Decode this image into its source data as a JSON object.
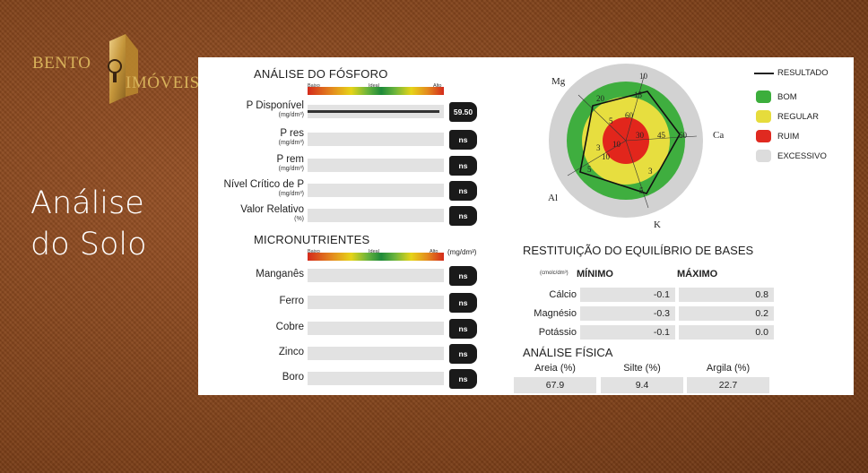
{
  "logo": {
    "line1": "BENTO",
    "line2": "IMÓVEIS"
  },
  "slide_title": {
    "line1": "Análise",
    "line2": "do Solo"
  },
  "scale": {
    "low": "Baixo",
    "ideal": "Ideal",
    "high": "Alto",
    "unit": "(mg/dm³)"
  },
  "phosphorus": {
    "title": "ANÁLISE DO FÓSFORO",
    "rows": [
      {
        "label": "P Disponível",
        "sub": "(mg/dm³)",
        "value": "59.50",
        "fill": 0.97
      },
      {
        "label": "P res",
        "sub": "(mg/dm³)",
        "value": "ns",
        "fill": 0
      },
      {
        "label": "P rem",
        "sub": "(mg/dm³)",
        "value": "ns",
        "fill": 0
      },
      {
        "label": "Nível Crítico de P",
        "sub": "(mg/dm³)",
        "value": "ns",
        "fill": 0
      },
      {
        "label": "Valor Relativo",
        "sub": "(%)",
        "value": "ns",
        "fill": 0
      }
    ]
  },
  "micronutrients": {
    "title": "MICRONUTRIENTES",
    "rows": [
      {
        "label": "Manganês",
        "value": "ns"
      },
      {
        "label": "Ferro",
        "value": "ns"
      },
      {
        "label": "Cobre",
        "value": "ns"
      },
      {
        "label": "Zinco",
        "value": "ns"
      },
      {
        "label": "Boro",
        "value": "ns"
      }
    ]
  },
  "radar": {
    "axes": [
      "Mg",
      "Ca",
      "K",
      "Al"
    ],
    "ticks": [
      "10",
      "15",
      "20",
      "60",
      "5",
      "10",
      "30",
      "45",
      "60",
      "3",
      "5",
      "10",
      "3",
      "5"
    ]
  },
  "legend": {
    "result": "RESULTADO",
    "items": [
      {
        "label": "BOM",
        "color": "#3cae3c"
      },
      {
        "label": "REGULAR",
        "color": "#e6dc3c"
      },
      {
        "label": "RUIM",
        "color": "#e02a20"
      },
      {
        "label": "EXCESSIVO",
        "color": "#dcdcdc"
      }
    ]
  },
  "bases": {
    "title": "RESTITUIÇÃO DO EQUILÍBRIO DE BASES",
    "unit": "(cmolc/dm³)",
    "min_header": "MÍNIMO",
    "max_header": "MÁXIMO",
    "rows": [
      {
        "label": "Cálcio",
        "min": "-0.1",
        "max": "0.8"
      },
      {
        "label": "Magnésio",
        "min": "-0.3",
        "max": "0.2"
      },
      {
        "label": "Potássio",
        "min": "-0.1",
        "max": "0.0"
      }
    ]
  },
  "physical": {
    "title": "ANÁLISE FÍSICA",
    "cols": [
      {
        "label": "Areia (%)",
        "value": "67.9"
      },
      {
        "label": "Silte (%)",
        "value": "9.4"
      },
      {
        "label": "Argila (%)",
        "value": "22.7"
      }
    ]
  }
}
